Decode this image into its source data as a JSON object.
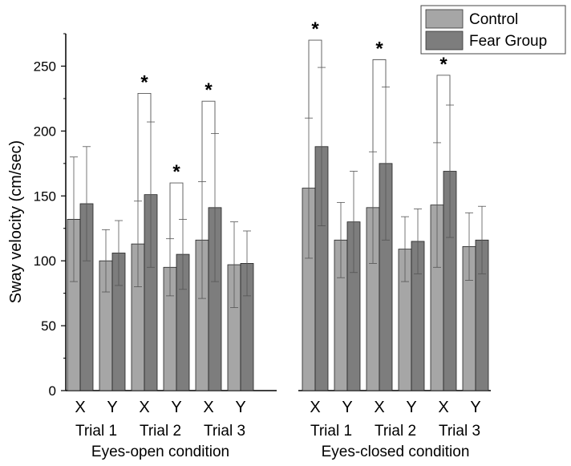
{
  "chart_data": {
    "type": "bar",
    "ylabel": "Sway velocity (cm/sec)",
    "ylim": [
      0,
      275
    ],
    "yticks": [
      0,
      50,
      100,
      150,
      200,
      250
    ],
    "grid": false,
    "legend_position": "top-right",
    "series": [
      {
        "name": "Control",
        "color": "#a6a6a6",
        "values": [
          132,
          100,
          113,
          95,
          116,
          97,
          156,
          116,
          141,
          109,
          143,
          111
        ],
        "errors": [
          48,
          24,
          33,
          22,
          45,
          33,
          54,
          29,
          43,
          25,
          48,
          26
        ]
      },
      {
        "name": "Fear Group",
        "color": "#7d7d7d",
        "values": [
          144,
          106,
          151,
          105,
          141,
          98,
          188,
          130,
          175,
          115,
          169,
          116
        ],
        "errors": [
          44,
          25,
          56,
          27,
          57,
          25,
          61,
          39,
          59,
          25,
          51,
          26
        ]
      }
    ],
    "categories": [
      "X",
      "Y",
      "X",
      "Y",
      "X",
      "Y",
      "X",
      "Y",
      "X",
      "Y",
      "X",
      "Y"
    ],
    "trial_labels": [
      "Trial 1",
      "Trial 2",
      "Trial 3",
      "Trial 1",
      "Trial 2",
      "Trial 3"
    ],
    "condition_labels": [
      "Eyes-open condition",
      "Eyes-closed condition"
    ],
    "significance": [
      {
        "index": 2,
        "mark": "*",
        "bracket_top": 229
      },
      {
        "index": 3,
        "mark": "*",
        "bracket_top": 160
      },
      {
        "index": 4,
        "mark": "*",
        "bracket_top": 223
      },
      {
        "index": 6,
        "mark": "*",
        "bracket_top": 270
      },
      {
        "index": 8,
        "mark": "*",
        "bracket_top": 255
      },
      {
        "index": 10,
        "mark": "*",
        "bracket_top": 243
      }
    ]
  }
}
